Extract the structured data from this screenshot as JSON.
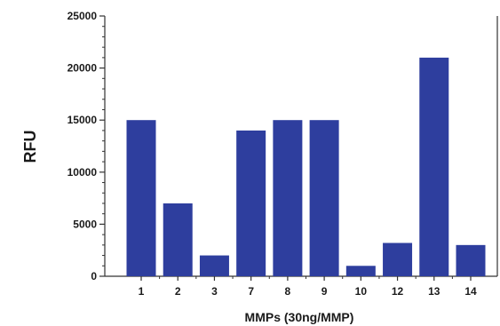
{
  "chart_data": {
    "type": "bar",
    "xlabel": "MMPs (30ng/MMP)",
    "ylabel": "RFU",
    "ylim": [
      0,
      25000
    ],
    "yticks": [
      0,
      5000,
      10000,
      15000,
      20000,
      25000
    ],
    "yticks_labels": [
      "0",
      "5000",
      "10000",
      "15000",
      "20000",
      "25000"
    ],
    "minor_ticks_per_major": 5,
    "categories": [
      "1",
      "2",
      "3",
      "7",
      "8",
      "9",
      "10",
      "12",
      "13",
      "14"
    ],
    "values": [
      15000,
      7000,
      2000,
      14000,
      15000,
      15000,
      1000,
      3200,
      21000,
      3000
    ],
    "bar_color": "#2e3e9e",
    "axis_color": "#333333",
    "grid": false,
    "legend": "none"
  }
}
